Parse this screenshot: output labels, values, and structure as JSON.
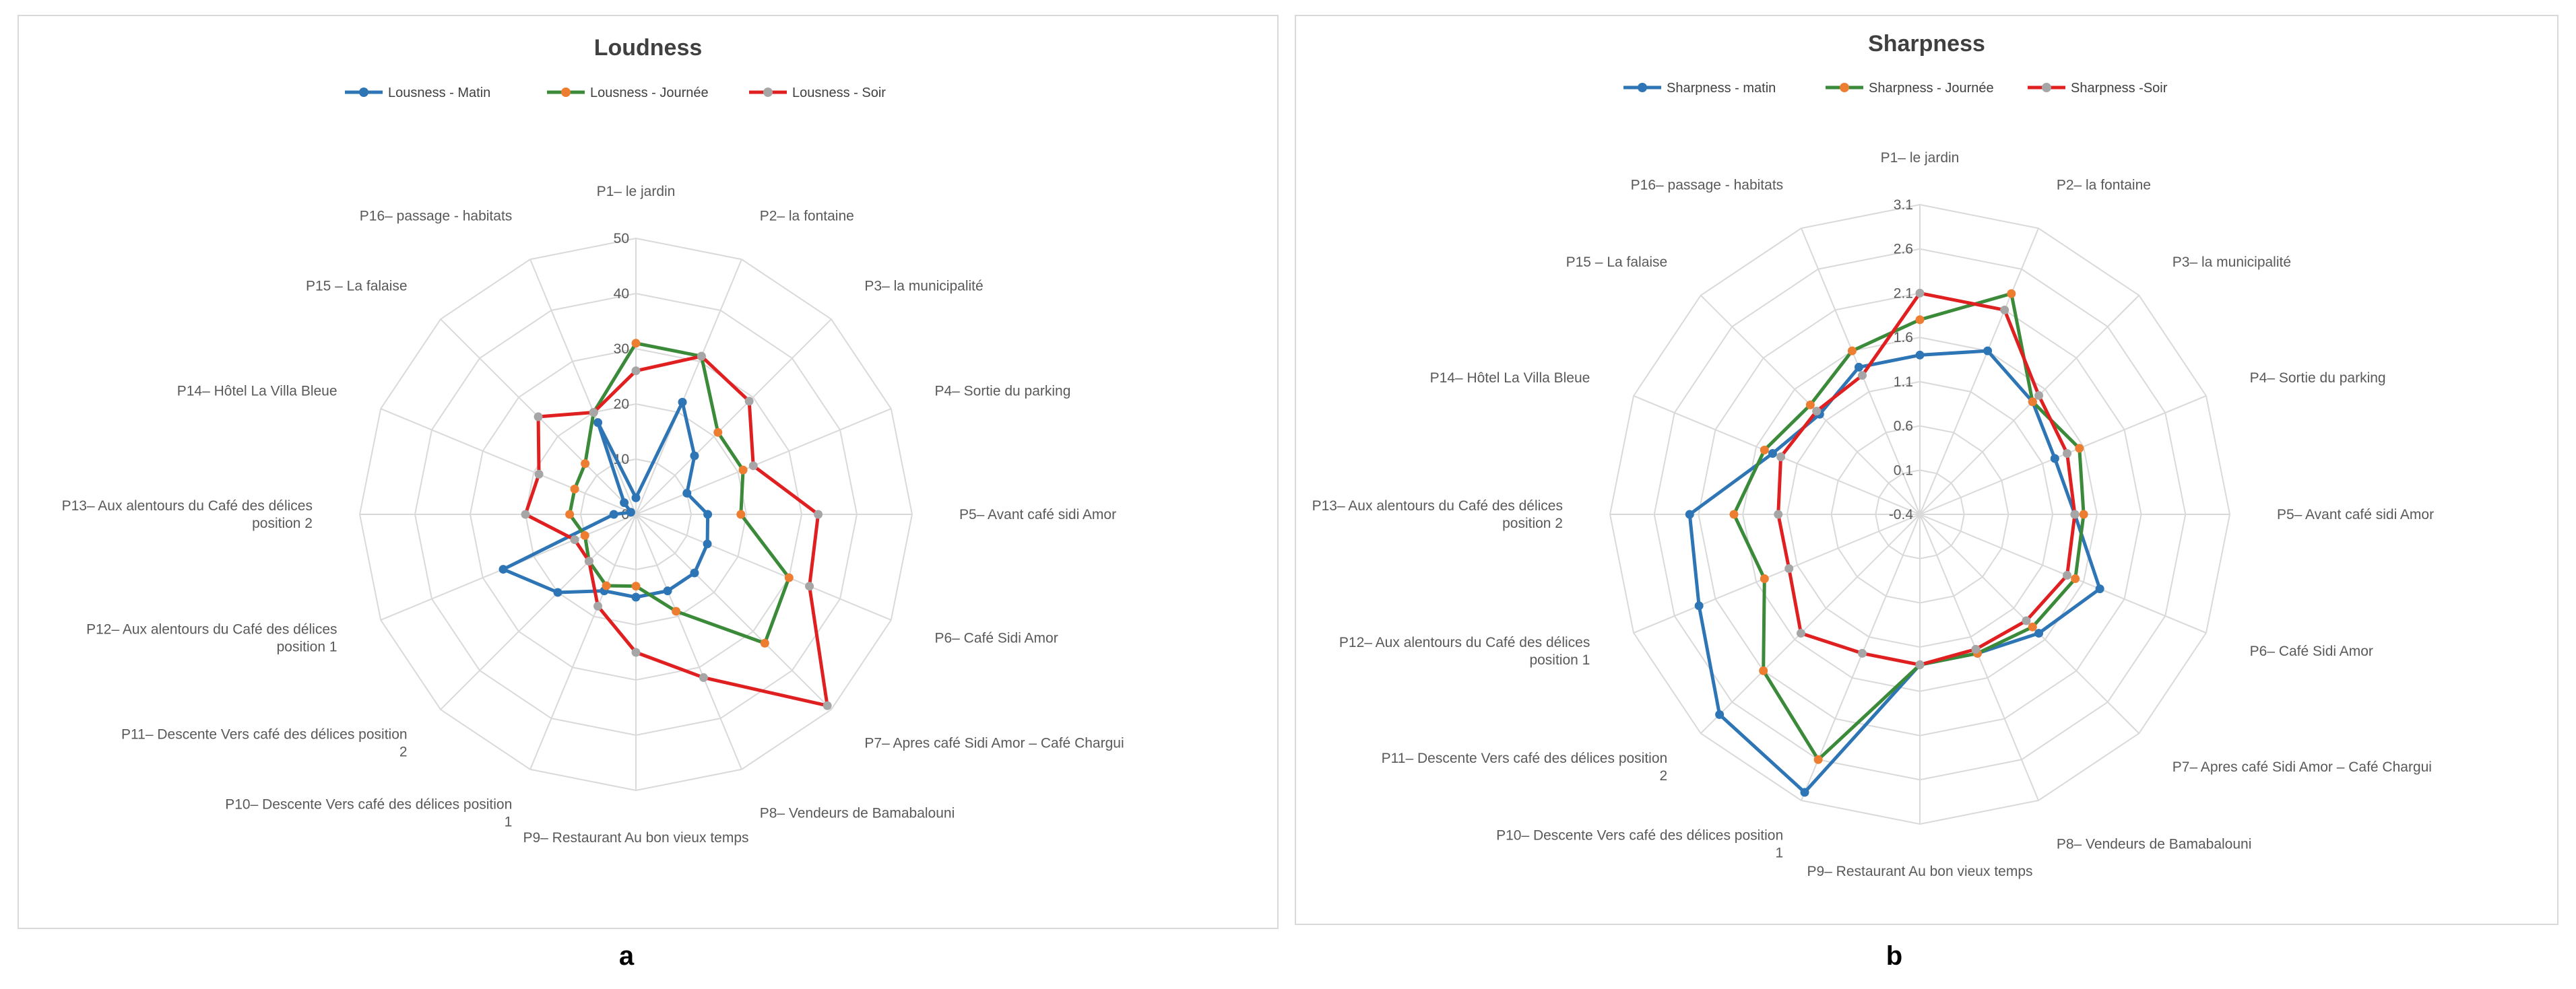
{
  "chart_data": [
    {
      "type": "radar",
      "panel_label": "a",
      "title": "Loudness",
      "legend_position": "top",
      "r_range": [
        0,
        50
      ],
      "r_ticks": [
        "0",
        "10",
        "20",
        "30",
        "40",
        "50"
      ],
      "categories": [
        "P1– le jardin",
        "P2– la fontaine",
        "P3– la municipalité",
        "P4– Sortie du parking",
        "P5– Avant café sidi Amor",
        "P6– Café Sidi Amor",
        "P7– Apres café Sidi Amor – Café Chargui",
        "P8– Vendeurs de Bamabalouni",
        "P9– Restaurant Au bon vieux temps",
        "P10– Descente Vers café des délices position 1",
        "P11– Descente Vers café des délices position 2",
        "P12– Aux alentours du Café des délices position 1",
        "P13– Aux alentours du Café des délices position 2",
        "P14– Hôtel La Villa Bleue",
        "P15 – La falaise",
        "P16– passage - habitats"
      ],
      "series": [
        {
          "name": "Lousness - Matin",
          "color": "#2e75b6",
          "marker_color": "#2e75b6",
          "values": [
            3,
            22,
            15,
            10,
            13,
            14,
            15,
            15,
            15,
            15,
            20,
            26,
            4,
            1,
            3,
            18
          ]
        },
        {
          "name": "Lousness - Journée",
          "color": "#3a8a3a",
          "marker_color": "#ed7d31",
          "values": [
            31,
            31,
            21,
            21,
            19,
            30,
            33,
            19,
            13,
            14,
            12,
            10,
            12,
            12,
            13,
            20
          ]
        },
        {
          "name": "Lousness - Soir",
          "color": "#e02020",
          "marker_color": "#a6a6a6",
          "values": [
            26,
            31,
            29,
            23,
            33,
            34,
            49,
            32,
            25,
            18,
            12,
            12,
            20,
            19,
            25,
            20
          ]
        }
      ]
    },
    {
      "type": "radar",
      "panel_label": "b",
      "title": "Sharpness",
      "legend_position": "top",
      "r_range": [
        -0.4,
        3.1
      ],
      "r_ticks": [
        "-0.4",
        "0.1",
        "0.6",
        "1.1",
        "1.6",
        "2.1",
        "2.6",
        "3.1"
      ],
      "categories": [
        "P1– le jardin",
        "P2– la fontaine",
        "P3– la municipalité",
        "P4– Sortie du parking",
        "P5– Avant café sidi Amor",
        "P6– Café Sidi Amor",
        "P7– Apres café Sidi Amor – Café Chargui",
        "P8– Vendeurs de Bamabalouni",
        "P9– Restaurant Au bon vieux temps",
        "P10– Descente Vers café des délices position 1",
        "P11– Descente Vers café des délices position 2",
        "P12– Aux alentours du Café des délices position 1",
        "P13– Aux alentours du Café des délices position 2",
        "P14– Hôtel La Villa Bleue",
        "P15 – La falaise",
        "P16– passage - habitats"
      ],
      "series": [
        {
          "name": "Sharpness - matin",
          "color": "#2e75b6",
          "marker_color": "#2e75b6",
          "values": [
            1.4,
            1.6,
            1.4,
            1.25,
            1.35,
            1.8,
            1.5,
            1.3,
            1.3,
            3.0,
            2.8,
            2.3,
            2.2,
            1.4,
            1.2,
            1.4
          ]
        },
        {
          "name": "Sharpness - Journée",
          "color": "#3a8a3a",
          "marker_color": "#ed7d31",
          "values": [
            1.8,
            2.3,
            1.4,
            1.55,
            1.45,
            1.5,
            1.4,
            1.3,
            1.3,
            2.6,
            2.1,
            1.5,
            1.7,
            1.5,
            1.35,
            1.6
          ]
        },
        {
          "name": "Sharpness -Soir",
          "color": "#e02020",
          "marker_color": "#a6a6a6",
          "values": [
            2.1,
            2.1,
            1.5,
            1.4,
            1.35,
            1.4,
            1.3,
            1.25,
            1.3,
            1.3,
            1.5,
            1.2,
            1.2,
            1.3,
            1.25,
            1.3
          ]
        }
      ]
    }
  ]
}
